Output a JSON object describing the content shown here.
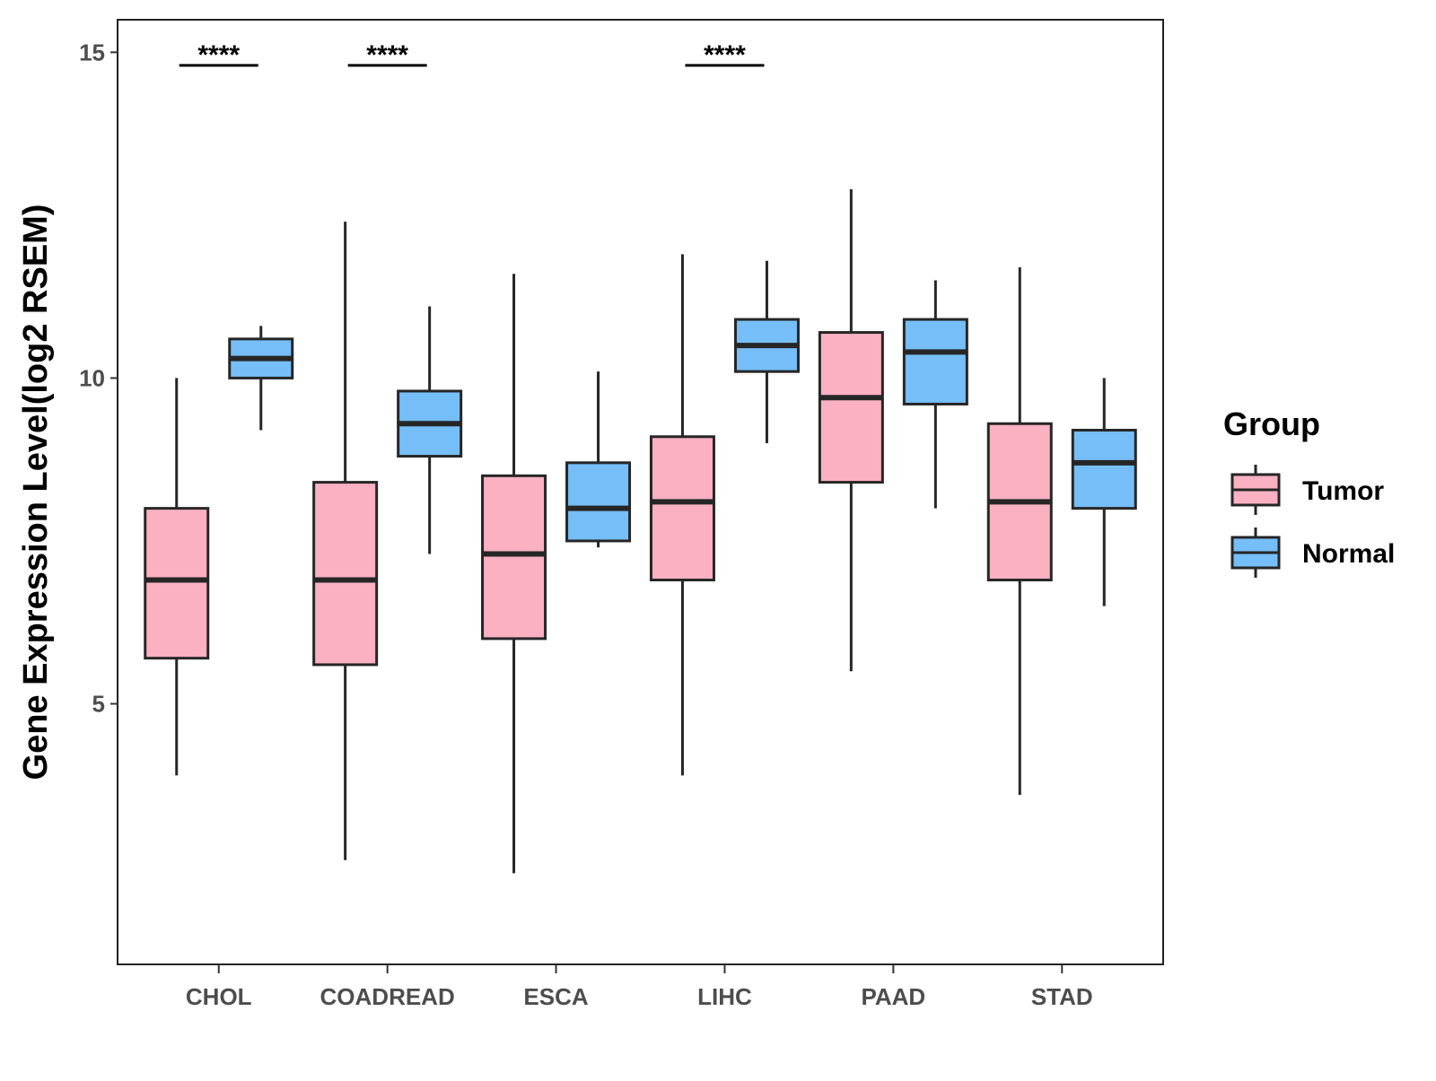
{
  "chart_data": {
    "type": "boxplot",
    "title": "",
    "xlabel": "",
    "ylabel": "Gene Expression Level(log2 RSEM)",
    "ylim": [
      1.0,
      15.5
    ],
    "yticks": [
      5,
      10,
      15
    ],
    "categories": [
      "CHOL",
      "COADREAD",
      "ESCA",
      "LIHC",
      "PAAD",
      "STAD"
    ],
    "legend": {
      "title": "Group",
      "position": "right"
    },
    "series": [
      {
        "name": "Tumor",
        "color": "#FBB1C2",
        "boxes": [
          {
            "whisker_low": 3.9,
            "q1": 5.7,
            "median": 6.9,
            "q3": 8.0,
            "whisker_high": 10.0
          },
          {
            "whisker_low": 2.6,
            "q1": 5.6,
            "median": 6.9,
            "q3": 8.4,
            "whisker_high": 12.4
          },
          {
            "whisker_low": 2.4,
            "q1": 6.0,
            "median": 7.3,
            "q3": 8.5,
            "whisker_high": 11.6
          },
          {
            "whisker_low": 3.9,
            "q1": 6.9,
            "median": 8.1,
            "q3": 9.1,
            "whisker_high": 11.9
          },
          {
            "whisker_low": 5.5,
            "q1": 8.4,
            "median": 9.7,
            "q3": 10.7,
            "whisker_high": 12.9
          },
          {
            "whisker_low": 3.6,
            "q1": 6.9,
            "median": 8.1,
            "q3": 9.3,
            "whisker_high": 11.7
          }
        ]
      },
      {
        "name": "Normal",
        "color": "#76BEF7",
        "boxes": [
          {
            "whisker_low": 9.2,
            "q1": 10.0,
            "median": 10.3,
            "q3": 10.6,
            "whisker_high": 10.8
          },
          {
            "whisker_low": 7.3,
            "q1": 8.8,
            "median": 9.3,
            "q3": 9.8,
            "whisker_high": 11.1
          },
          {
            "whisker_low": 7.4,
            "q1": 7.5,
            "median": 8.0,
            "q3": 8.7,
            "whisker_high": 10.1
          },
          {
            "whisker_low": 9.0,
            "q1": 10.1,
            "median": 10.5,
            "q3": 10.9,
            "whisker_high": 11.8
          },
          {
            "whisker_low": 8.0,
            "q1": 9.6,
            "median": 10.4,
            "q3": 10.9,
            "whisker_high": 11.5
          },
          {
            "whisker_low": 6.5,
            "q1": 8.0,
            "median": 8.7,
            "q3": 9.2,
            "whisker_high": 10.0
          }
        ]
      }
    ],
    "annotations": [
      {
        "category": "CHOL",
        "text": "****",
        "y": 14.8
      },
      {
        "category": "COADREAD",
        "text": "****",
        "y": 14.8
      },
      {
        "category": "LIHC",
        "text": "****",
        "y": 14.8
      }
    ],
    "grid": false
  }
}
